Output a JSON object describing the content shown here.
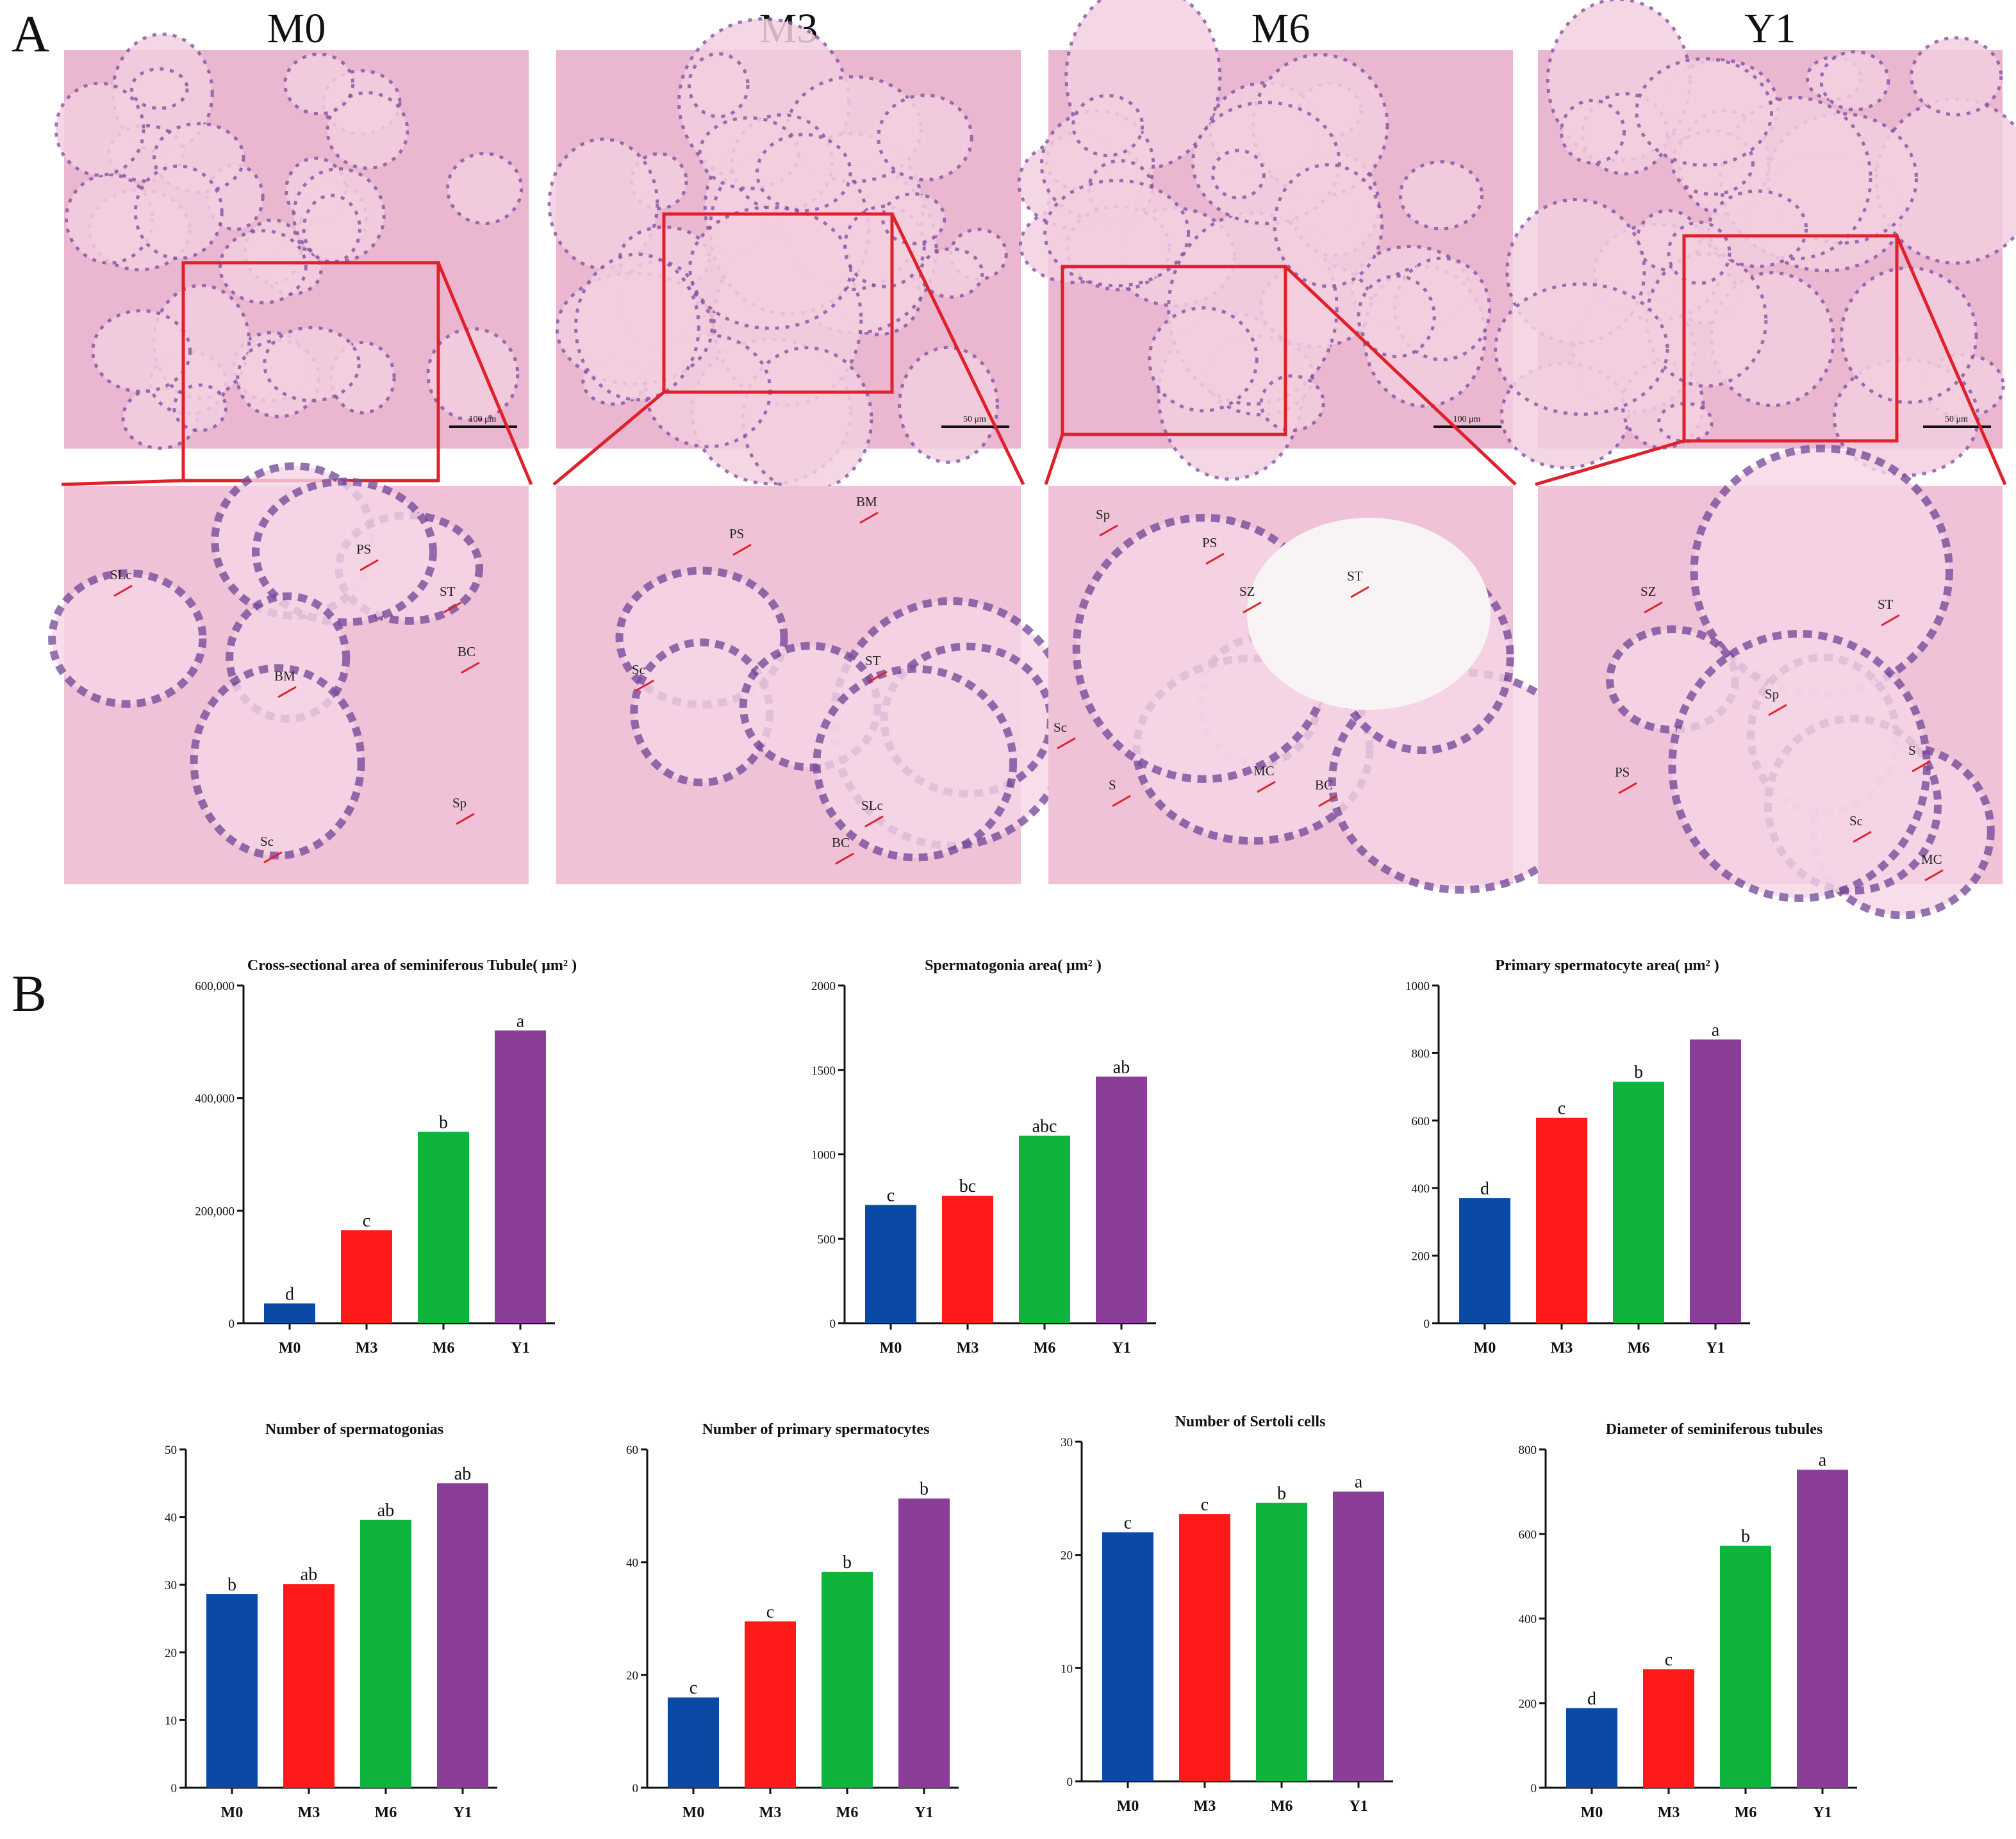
{
  "panel_a": {
    "label": "A",
    "groups": [
      "M0",
      "M3",
      "M6",
      "Y1"
    ],
    "scale_bars": [
      "100 μm",
      "50 μm",
      "100 μm",
      "50 μm"
    ],
    "annotations": [
      [
        "SLc",
        "PS",
        "ST",
        "BC",
        "BM",
        "Sp",
        "Sc"
      ],
      [
        "PS",
        "BM",
        "ST",
        "Sc",
        "SLc",
        "BC"
      ],
      [
        "Sp",
        "PS",
        "ST",
        "SZ",
        "Sc",
        "MC",
        "BC",
        "S"
      ],
      [
        "SZ",
        "ST",
        "Sp",
        "S",
        "PS",
        "Sc",
        "MC"
      ]
    ]
  },
  "panel_b": {
    "label": "B"
  },
  "colors": {
    "M0": "#0a4aa6",
    "M3": "#ff1a1a",
    "M6": "#0fb43c",
    "Y1": "#8a3e98",
    "callout": "#e0202a",
    "stain": "#eab6d0"
  },
  "chart_data": [
    {
      "type": "bar",
      "title": "Cross-sectional area of seminiferous Tubule( μm² )",
      "categories": [
        "M0",
        "M3",
        "M6",
        "Y1"
      ],
      "values": [
        35000,
        165000,
        340000,
        520000
      ],
      "letters": [
        "d",
        "c",
        "b",
        "a"
      ],
      "ylim": [
        0,
        600000
      ],
      "yticks": [
        "0",
        "200,000",
        "400,000",
        "600,000"
      ],
      "xlabel": "",
      "ylabel": ""
    },
    {
      "type": "bar",
      "title": "Spermatogonia area( μm² )",
      "categories": [
        "M0",
        "M3",
        "M6",
        "Y1"
      ],
      "values": [
        700,
        755,
        1110,
        1460
      ],
      "letters": [
        "c",
        "bc",
        "abc",
        "ab"
      ],
      "ylim": [
        0,
        2000
      ],
      "yticks": [
        "0",
        "500",
        "1000",
        "1500",
        "2000"
      ],
      "xlabel": "",
      "ylabel": ""
    },
    {
      "type": "bar",
      "title": "Primary spermatocyte area( μm² )",
      "categories": [
        "M0",
        "M3",
        "M6",
        "Y1"
      ],
      "values": [
        370,
        608,
        715,
        840
      ],
      "letters": [
        "d",
        "c",
        "b",
        "a"
      ],
      "ylim": [
        0,
        1000
      ],
      "yticks": [
        "0",
        "200",
        "400",
        "600",
        "800",
        "1000"
      ],
      "xlabel": "",
      "ylabel": ""
    },
    {
      "type": "bar",
      "title": "Number of spermatogonias",
      "categories": [
        "M0",
        "M3",
        "M6",
        "Y1"
      ],
      "values": [
        28.6,
        30.1,
        39.6,
        45.0
      ],
      "letters": [
        "b",
        "ab",
        "ab",
        "ab"
      ],
      "ylim": [
        0,
        50
      ],
      "yticks": [
        "0",
        "10",
        "20",
        "30",
        "40",
        "50"
      ],
      "xlabel": "",
      "ylabel": ""
    },
    {
      "type": "bar",
      "title": "Number of primary spermatocytes",
      "categories": [
        "M0",
        "M3",
        "M6",
        "Y1"
      ],
      "values": [
        16,
        29.5,
        38.3,
        51.3
      ],
      "letters": [
        "c",
        "c",
        "b",
        "b"
      ],
      "ylim": [
        0,
        60
      ],
      "yticks": [
        "0",
        "20",
        "40",
        "60"
      ],
      "xlabel": "",
      "ylabel": ""
    },
    {
      "type": "bar",
      "title": "Number of Sertoli cells",
      "categories": [
        "M0",
        "M3",
        "M6",
        "Y1"
      ],
      "values": [
        22.0,
        23.6,
        24.6,
        25.6
      ],
      "letters": [
        "c",
        "c",
        "b",
        "a"
      ],
      "ylim": [
        0,
        30
      ],
      "yticks": [
        "0",
        "10",
        "20",
        "30"
      ],
      "xlabel": "",
      "ylabel": ""
    },
    {
      "type": "bar",
      "title": "Diameter of seminiferous tubules",
      "categories": [
        "M0",
        "M3",
        "M6",
        "Y1"
      ],
      "values": [
        188,
        280,
        572,
        752
      ],
      "letters": [
        "d",
        "c",
        "b",
        "a"
      ],
      "ylim": [
        0,
        800
      ],
      "yticks": [
        "0",
        "200",
        "400",
        "600",
        "800"
      ],
      "xlabel": "",
      "ylabel": ""
    }
  ]
}
